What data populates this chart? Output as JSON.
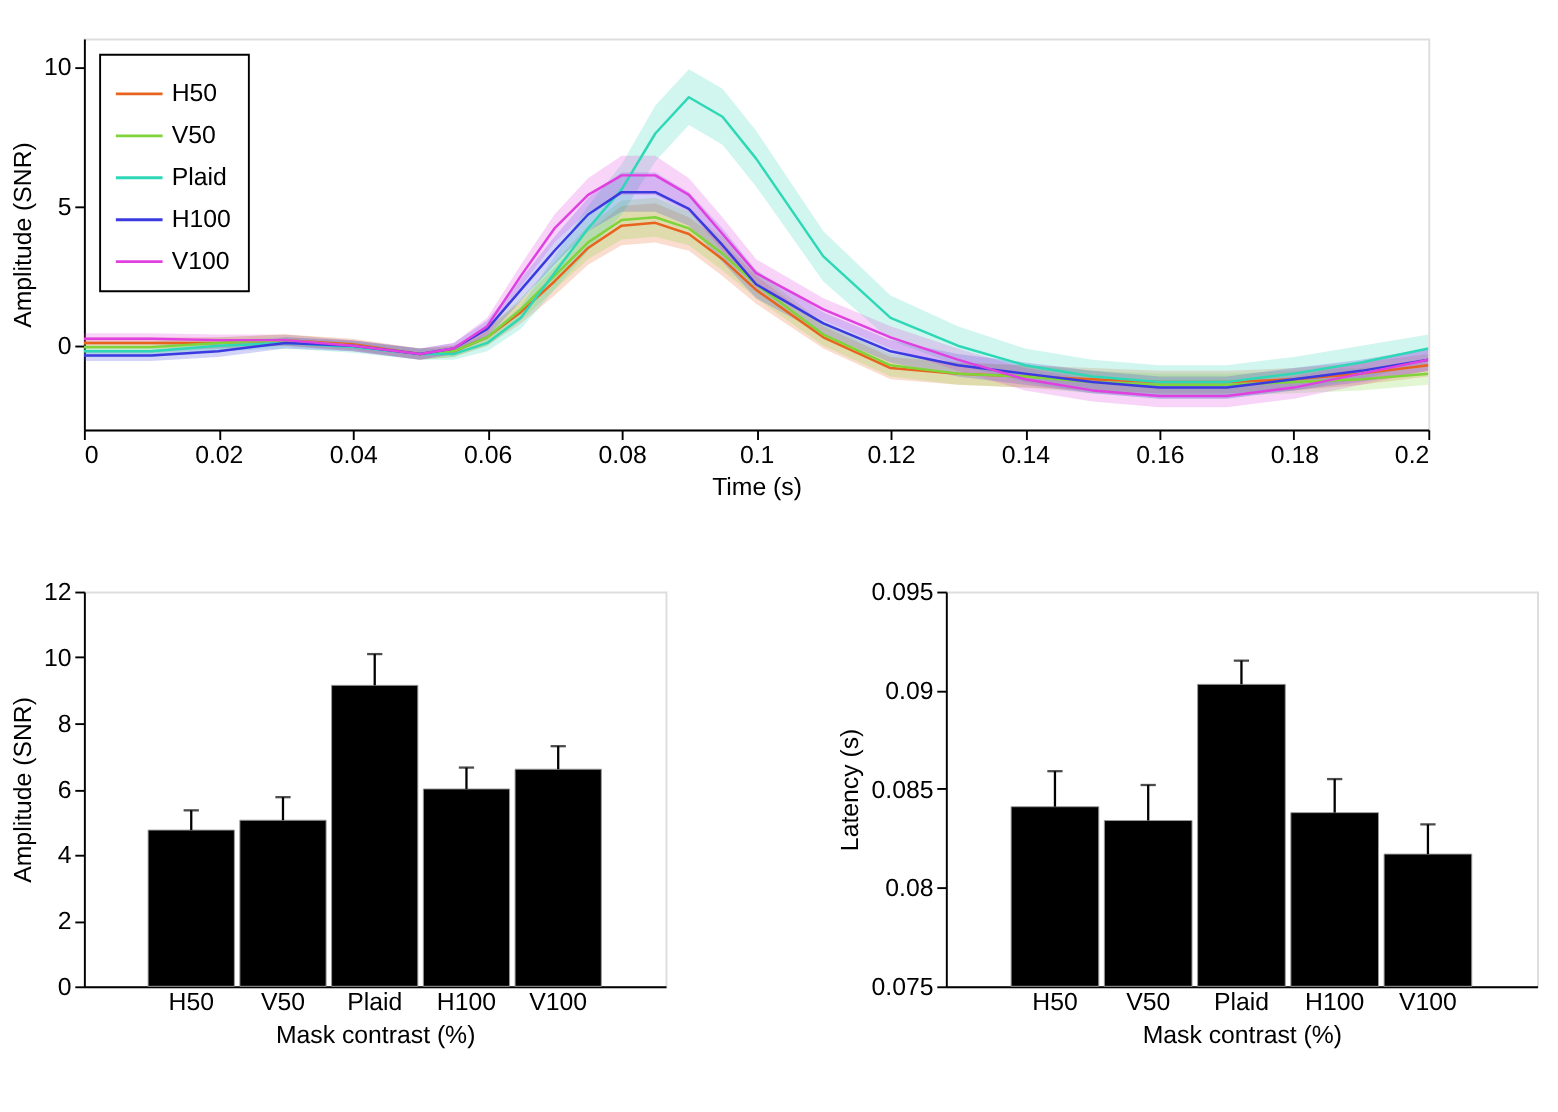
{
  "chart_data": [
    {
      "type": "line",
      "xlabel": "Time (s)",
      "ylabel": "Amplitude (SNR)",
      "xlim": [
        0,
        0.2
      ],
      "ylim": [
        -3,
        11
      ],
      "xticks": [
        0,
        0.02,
        0.04,
        0.06,
        0.08,
        0.1,
        0.12,
        0.14,
        0.16,
        0.18,
        0.2
      ],
      "yticks": [
        0,
        5,
        10
      ],
      "grid": false,
      "legend": "top left",
      "line_style": "solid",
      "marker": "none",
      "x": [
        0,
        0.01,
        0.02,
        0.03,
        0.04,
        0.05,
        0.055,
        0.06,
        0.065,
        0.07,
        0.075,
        0.08,
        0.085,
        0.09,
        0.095,
        0.1,
        0.11,
        0.12,
        0.13,
        0.14,
        0.15,
        0.16,
        0.17,
        0.18,
        0.19,
        0.2
      ],
      "series": [
        {
          "name": "H50",
          "color": "#e8641e",
          "values": [
            0.1,
            0.1,
            0.1,
            0.2,
            0.05,
            -0.3,
            -0.2,
            0.3,
            1.2,
            2.3,
            3.5,
            4.3,
            4.4,
            4.0,
            3.1,
            2.0,
            0.3,
            -0.8,
            -1.0,
            -1.1,
            -1.2,
            -1.3,
            -1.3,
            -1.2,
            -1.0,
            -0.7
          ],
          "lower": [
            -0.1,
            -0.1,
            -0.1,
            0.0,
            -0.15,
            -0.5,
            -0.4,
            0.0,
            0.8,
            1.8,
            2.9,
            3.6,
            3.7,
            3.4,
            2.5,
            1.5,
            -0.1,
            -1.2,
            -1.4,
            -1.5,
            -1.6,
            -1.7,
            -1.7,
            -1.6,
            -1.4,
            -1.1
          ],
          "upper": [
            0.3,
            0.3,
            0.3,
            0.4,
            0.25,
            -0.1,
            0.0,
            0.6,
            1.6,
            2.8,
            4.1,
            5.0,
            5.1,
            4.6,
            3.7,
            2.5,
            0.7,
            -0.4,
            -0.6,
            -0.7,
            -0.8,
            -0.9,
            -0.9,
            -0.8,
            -0.6,
            -0.3
          ]
        },
        {
          "name": "V50",
          "color": "#7fd43a",
          "values": [
            -0.05,
            -0.05,
            0.1,
            0.2,
            0.0,
            -0.3,
            -0.2,
            0.3,
            1.3,
            2.5,
            3.7,
            4.5,
            4.6,
            4.2,
            3.3,
            2.2,
            0.4,
            -0.7,
            -1.0,
            -1.1,
            -1.3,
            -1.4,
            -1.4,
            -1.3,
            -1.2,
            -1.0
          ],
          "lower": [
            -0.25,
            -0.25,
            -0.1,
            0.0,
            -0.2,
            -0.5,
            -0.4,
            0.0,
            0.9,
            2.0,
            3.1,
            3.8,
            3.9,
            3.6,
            2.7,
            1.7,
            0.0,
            -1.1,
            -1.4,
            -1.5,
            -1.7,
            -1.8,
            -1.8,
            -1.7,
            -1.6,
            -1.4
          ],
          "upper": [
            0.15,
            0.15,
            0.3,
            0.4,
            0.2,
            -0.1,
            0.0,
            0.6,
            1.7,
            3.0,
            4.3,
            5.2,
            5.3,
            4.8,
            3.9,
            2.7,
            0.8,
            -0.3,
            -0.6,
            -0.7,
            -0.9,
            -1.0,
            -1.0,
            -0.9,
            -0.8,
            -0.6
          ]
        },
        {
          "name": "Plaid",
          "color": "#2ed8b6",
          "values": [
            -0.2,
            -0.2,
            0.0,
            0.1,
            -0.05,
            -0.3,
            -0.3,
            0.1,
            1.0,
            2.6,
            4.2,
            5.6,
            7.6,
            8.9,
            8.2,
            6.7,
            3.2,
            1.0,
            0.0,
            -0.7,
            -1.1,
            -1.3,
            -1.3,
            -1.0,
            -0.6,
            -0.1
          ],
          "lower": [
            -0.4,
            -0.4,
            -0.2,
            -0.1,
            -0.25,
            -0.5,
            -0.5,
            -0.2,
            0.6,
            2.0,
            3.4,
            4.7,
            6.6,
            7.9,
            7.2,
            5.7,
            2.3,
            0.2,
            -0.7,
            -1.3,
            -1.7,
            -1.9,
            -1.9,
            -1.6,
            -1.2,
            -0.6
          ],
          "upper": [
            0.0,
            0.0,
            0.2,
            0.3,
            0.15,
            -0.1,
            -0.1,
            0.4,
            1.4,
            3.2,
            5.0,
            6.5,
            8.6,
            9.9,
            9.2,
            7.7,
            4.1,
            1.8,
            0.7,
            -0.1,
            -0.5,
            -0.7,
            -0.7,
            -0.4,
            0.0,
            0.4
          ]
        },
        {
          "name": "H100",
          "color": "#3a3ae0",
          "values": [
            -0.35,
            -0.35,
            -0.2,
            0.1,
            0.0,
            -0.3,
            -0.1,
            0.6,
            2.0,
            3.4,
            4.7,
            5.5,
            5.5,
            4.9,
            3.6,
            2.2,
            0.8,
            -0.2,
            -0.7,
            -1.0,
            -1.3,
            -1.5,
            -1.5,
            -1.2,
            -0.9,
            -0.5
          ],
          "lower": [
            -0.55,
            -0.55,
            -0.4,
            -0.1,
            -0.2,
            -0.5,
            -0.3,
            0.3,
            1.6,
            2.9,
            4.1,
            4.8,
            4.8,
            4.3,
            3.0,
            1.7,
            0.4,
            -0.6,
            -1.1,
            -1.4,
            -1.7,
            -1.9,
            -1.9,
            -1.6,
            -1.3,
            -0.9
          ],
          "upper": [
            -0.15,
            -0.15,
            0.0,
            0.3,
            0.2,
            -0.1,
            0.1,
            0.9,
            2.4,
            3.9,
            5.3,
            6.2,
            6.2,
            5.5,
            4.2,
            2.7,
            1.2,
            0.2,
            -0.3,
            -0.6,
            -0.9,
            -1.1,
            -1.1,
            -0.8,
            -0.5,
            -0.1
          ]
        },
        {
          "name": "V100",
          "color": "#e040e0",
          "values": [
            0.25,
            0.25,
            0.2,
            0.2,
            0.0,
            -0.3,
            -0.1,
            0.7,
            2.5,
            4.2,
            5.4,
            6.1,
            6.1,
            5.4,
            4.0,
            2.6,
            1.3,
            0.3,
            -0.5,
            -1.2,
            -1.6,
            -1.8,
            -1.8,
            -1.5,
            -1.0,
            -0.5
          ],
          "lower": [
            0.05,
            0.05,
            0.0,
            0.0,
            -0.2,
            -0.5,
            -0.3,
            0.4,
            2.1,
            3.7,
            4.8,
            5.4,
            5.4,
            4.8,
            3.4,
            2.1,
            0.9,
            -0.1,
            -0.9,
            -1.6,
            -2.0,
            -2.2,
            -2.2,
            -1.9,
            -1.4,
            -0.9
          ],
          "upper": [
            0.45,
            0.45,
            0.4,
            0.4,
            0.2,
            -0.1,
            0.1,
            1.0,
            2.9,
            4.7,
            6.0,
            6.8,
            6.8,
            6.0,
            4.6,
            3.1,
            1.7,
            0.7,
            -0.1,
            -0.8,
            -1.2,
            -1.4,
            -1.4,
            -1.1,
            -0.6,
            -0.1
          ]
        }
      ]
    },
    {
      "type": "bar",
      "xlabel": "Mask contrast (%)",
      "ylabel": "Amplitude (SNR)",
      "categories": [
        "H50",
        "V50",
        "Plaid",
        "H100",
        "V100"
      ],
      "values": [
        4.75,
        5.05,
        9.15,
        6.0,
        6.6
      ],
      "errors": [
        [
          4.75,
          5.35
        ],
        [
          5.05,
          5.75
        ],
        [
          9.15,
          10.1
        ],
        [
          6.0,
          6.65
        ],
        [
          6.6,
          7.3
        ]
      ],
      "color": "#000000",
      "ylim": [
        0,
        12
      ],
      "yticks": [
        0,
        2,
        4,
        6,
        8,
        10,
        12
      ],
      "grid": false
    },
    {
      "type": "bar",
      "xlabel": "Mask contrast (%)",
      "ylabel": "Latency (s)",
      "categories": [
        "H50",
        "V50",
        "Plaid",
        "H100",
        "V100"
      ],
      "values": [
        0.0841,
        0.0834,
        0.0903,
        0.0838,
        0.0817
      ],
      "errors": [
        [
          0.0841,
          0.0859
        ],
        [
          0.0834,
          0.0852
        ],
        [
          0.0903,
          0.0915
        ],
        [
          0.0838,
          0.0855
        ],
        [
          0.0817,
          0.0832
        ]
      ],
      "color": "#000000",
      "ylim": [
        0.075,
        0.095
      ],
      "yticks": [
        0.075,
        0.08,
        0.085,
        0.09,
        0.095
      ],
      "grid": false
    }
  ]
}
